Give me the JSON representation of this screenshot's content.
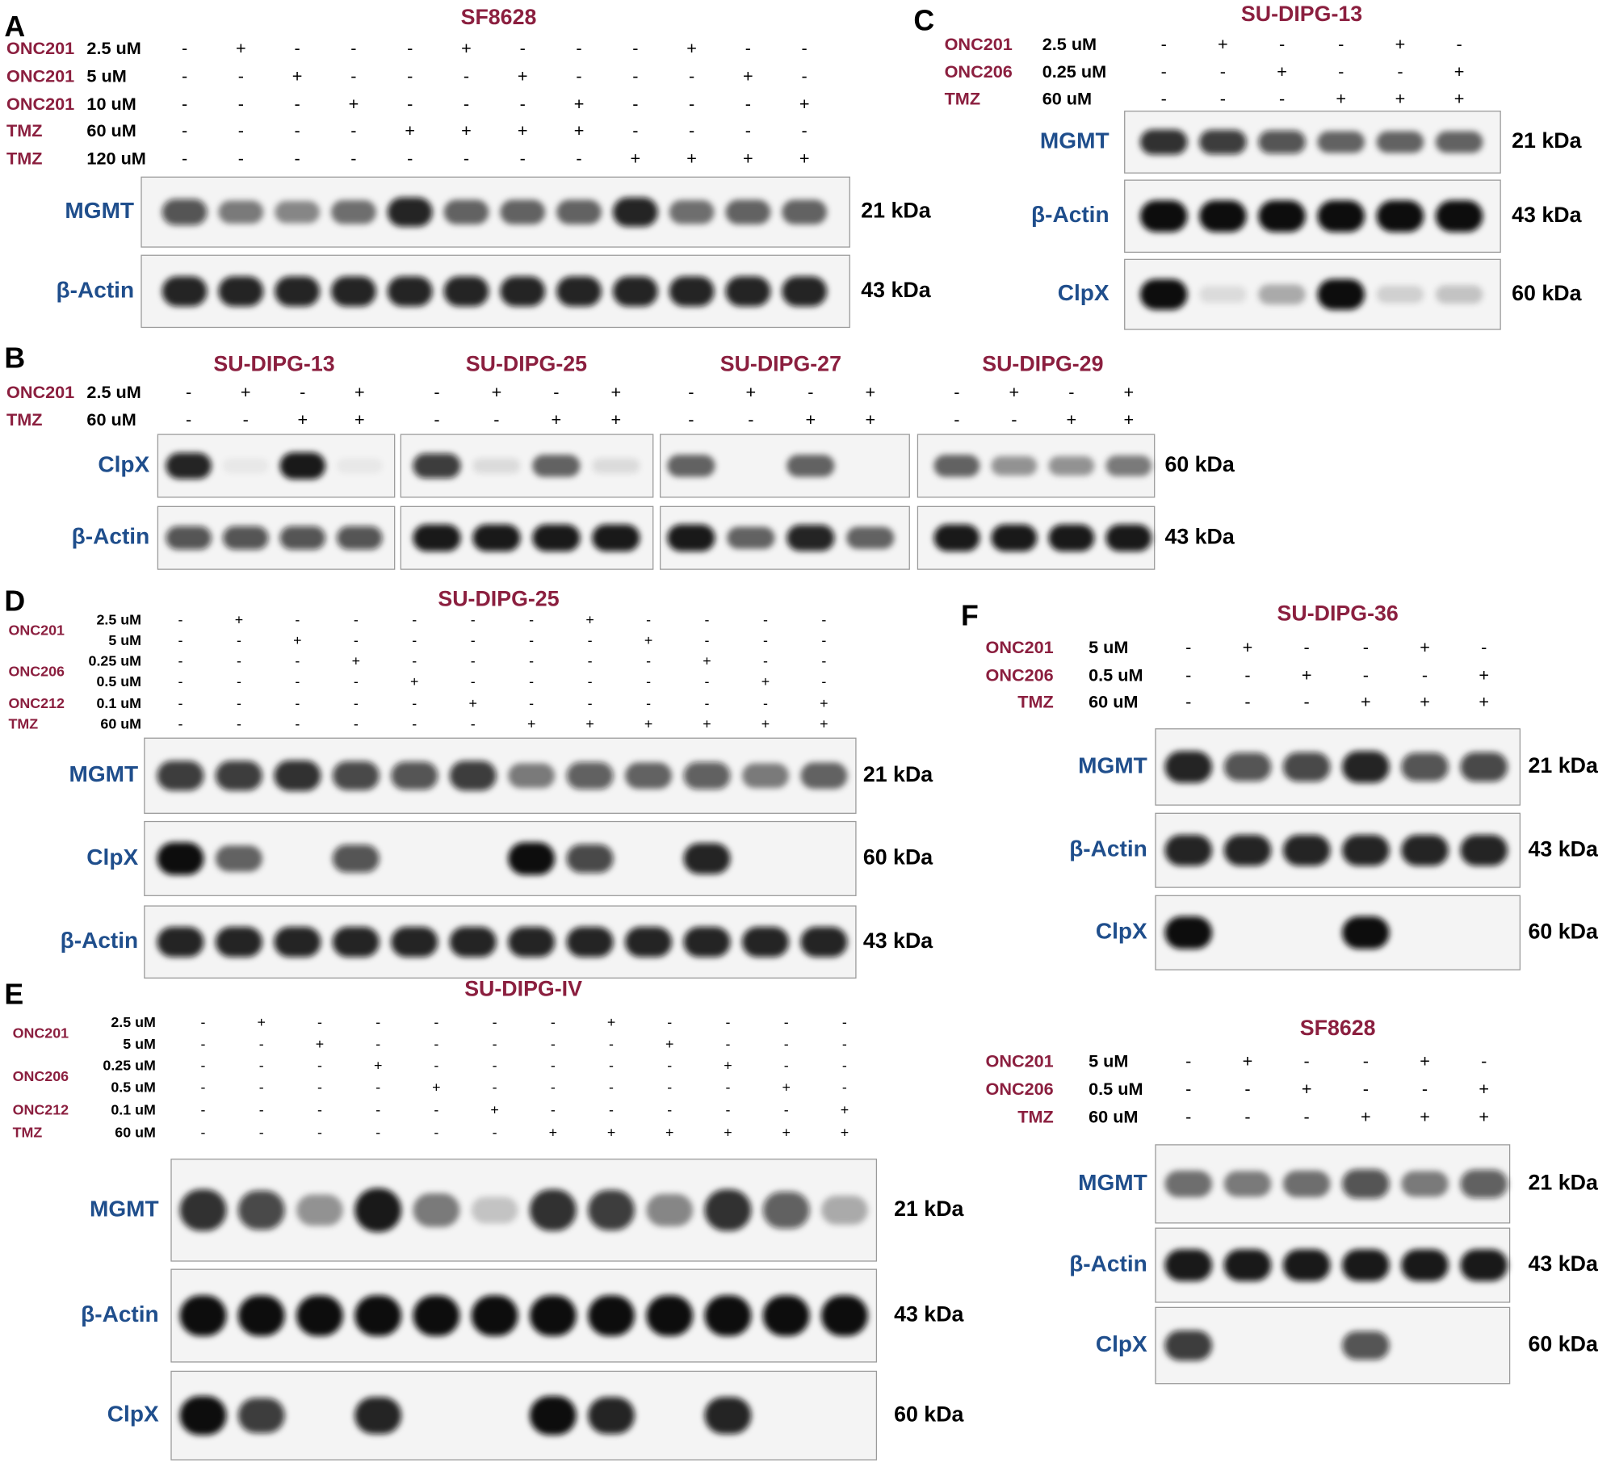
{
  "panels": [
    {
      "letter": "A",
      "groups": [
        {
          "title": "SF8628",
          "treatments": [
            {
              "agent": "ONC201",
              "doses": [
                {
                  "dose": "2.5 uM",
                  "signs": [
                    "-",
                    "+",
                    "-",
                    "-",
                    "-",
                    "+",
                    "-",
                    "-",
                    "-",
                    "+",
                    "-",
                    "-"
                  ]
                }
              ]
            },
            {
              "agent": "ONC201",
              "doses": [
                {
                  "dose": "5 uM",
                  "signs": [
                    "-",
                    "-",
                    "+",
                    "-",
                    "-",
                    "-",
                    "+",
                    "-",
                    "-",
                    "-",
                    "+",
                    "-"
                  ]
                }
              ]
            },
            {
              "agent": "ONC201",
              "doses": [
                {
                  "dose": "10 uM",
                  "signs": [
                    "-",
                    "-",
                    "-",
                    "+",
                    "-",
                    "-",
                    "-",
                    "+",
                    "-",
                    "-",
                    "-",
                    "+"
                  ]
                }
              ]
            },
            {
              "agent": "TMZ",
              "doses": [
                {
                  "dose": "60 uM",
                  "signs": [
                    "-",
                    "-",
                    "-",
                    "-",
                    "+",
                    "+",
                    "+",
                    "+",
                    "-",
                    "-",
                    "-",
                    "-"
                  ]
                }
              ]
            },
            {
              "agent": "TMZ",
              "doses": [
                {
                  "dose": "120 uM",
                  "signs": [
                    "-",
                    "-",
                    "-",
                    "-",
                    "-",
                    "-",
                    "-",
                    "-",
                    "+",
                    "+",
                    "+",
                    "+"
                  ]
                }
              ]
            }
          ],
          "blots": [
            {
              "protein": "MGMT",
              "size": "21 kDa"
            },
            {
              "protein": "β-Actin",
              "size": "43 kDa"
            }
          ]
        }
      ]
    },
    {
      "letter": "B",
      "treatments": [
        {
          "agent": "ONC201",
          "doses": [
            {
              "dose": "2.5 uM"
            }
          ]
        },
        {
          "agent": "TMZ",
          "doses": [
            {
              "dose": "60 uM"
            }
          ]
        }
      ],
      "blots": [
        {
          "protein": "ClpX",
          "size": "60 kDa"
        },
        {
          "protein": "β-Actin",
          "size": "43 kDa"
        }
      ],
      "groups": [
        {
          "title": "SU-DIPG-13",
          "signs": [
            [
              "-",
              "+",
              "-",
              "+"
            ],
            [
              "-",
              "-",
              "+",
              "+"
            ]
          ]
        },
        {
          "title": "SU-DIPG-25",
          "signs": [
            [
              "-",
              "+",
              "-",
              "+"
            ],
            [
              "-",
              "-",
              "+",
              "+"
            ]
          ]
        },
        {
          "title": "SU-DIPG-27",
          "signs": [
            [
              "-",
              "+",
              "-",
              "+"
            ],
            [
              "-",
              "-",
              "+",
              "+"
            ]
          ]
        },
        {
          "title": "SU-DIPG-29",
          "signs": [
            [
              "-",
              "+",
              "-",
              "+"
            ],
            [
              "-",
              "-",
              "+",
              "+"
            ]
          ]
        }
      ]
    },
    {
      "letter": "C",
      "groups": [
        {
          "title": "SU-DIPG-13",
          "treatments": [
            {
              "agent": "ONC201",
              "doses": [
                {
                  "dose": "2.5 uM",
                  "signs": [
                    "-",
                    "+",
                    "-",
                    "-",
                    "+",
                    "-"
                  ]
                }
              ]
            },
            {
              "agent": "ONC206",
              "doses": [
                {
                  "dose": "0.25 uM",
                  "signs": [
                    "-",
                    "-",
                    "+",
                    "-",
                    "-",
                    "+"
                  ]
                }
              ]
            },
            {
              "agent": "TMZ",
              "doses": [
                {
                  "dose": "60 uM",
                  "signs": [
                    "-",
                    "-",
                    "-",
                    "+",
                    "+",
                    "+"
                  ]
                }
              ]
            }
          ],
          "blots": [
            {
              "protein": "MGMT",
              "size": "21 kDa"
            },
            {
              "protein": "β-Actin",
              "size": "43 kDa"
            },
            {
              "protein": "ClpX",
              "size": "60 kDa"
            }
          ]
        }
      ]
    },
    {
      "letter": "D",
      "groups": [
        {
          "title": "SU-DIPG-25",
          "treatments": [
            {
              "agent": "ONC201",
              "doses": [
                {
                  "dose": "2.5 uM",
                  "signs": [
                    "-",
                    "+",
                    "-",
                    "-",
                    "-",
                    "-",
                    "-",
                    "+",
                    "-",
                    "-",
                    "-",
                    "-"
                  ]
                },
                {
                  "dose": "5 uM",
                  "signs": [
                    "-",
                    "-",
                    "+",
                    "-",
                    "-",
                    "-",
                    "-",
                    "-",
                    "+",
                    "-",
                    "-",
                    "-"
                  ]
                }
              ]
            },
            {
              "agent": "ONC206",
              "doses": [
                {
                  "dose": "0.25 uM",
                  "signs": [
                    "-",
                    "-",
                    "-",
                    "+",
                    "-",
                    "-",
                    "-",
                    "-",
                    "-",
                    "+",
                    "-",
                    "-"
                  ]
                },
                {
                  "dose": "0.5 uM",
                  "signs": [
                    "-",
                    "-",
                    "-",
                    "-",
                    "+",
                    "-",
                    "-",
                    "-",
                    "-",
                    "-",
                    "+",
                    "-"
                  ]
                }
              ]
            },
            {
              "agent": "ONC212",
              "doses": [
                {
                  "dose": "0.1 uM",
                  "signs": [
                    "-",
                    "-",
                    "-",
                    "-",
                    "-",
                    "+",
                    "-",
                    "-",
                    "-",
                    "-",
                    "-",
                    "+"
                  ]
                }
              ]
            },
            {
              "agent": "TMZ",
              "doses": [
                {
                  "dose": "60 uM",
                  "signs": [
                    "-",
                    "-",
                    "-",
                    "-",
                    "-",
                    "-",
                    "+",
                    "+",
                    "+",
                    "+",
                    "+",
                    "+"
                  ]
                }
              ]
            }
          ],
          "blots": [
            {
              "protein": "MGMT",
              "size": "21 kDa"
            },
            {
              "protein": "ClpX",
              "size": "60 kDa"
            },
            {
              "protein": "β-Actin",
              "size": "43 kDa"
            }
          ]
        }
      ]
    },
    {
      "letter": "E",
      "groups": [
        {
          "title": "SU-DIPG-IV",
          "treatments": [
            {
              "agent": "ONC201",
              "doses": [
                {
                  "dose": "2.5 uM",
                  "signs": [
                    "-",
                    "+",
                    "-",
                    "-",
                    "-",
                    "-",
                    "-",
                    "+",
                    "-",
                    "-",
                    "-",
                    "-"
                  ]
                },
                {
                  "dose": "5 uM",
                  "signs": [
                    "-",
                    "-",
                    "+",
                    "-",
                    "-",
                    "-",
                    "-",
                    "-",
                    "+",
                    "-",
                    "-",
                    "-"
                  ]
                }
              ]
            },
            {
              "agent": "ONC206",
              "doses": [
                {
                  "dose": "0.25 uM",
                  "signs": [
                    "-",
                    "-",
                    "-",
                    "+",
                    "-",
                    "-",
                    "-",
                    "-",
                    "-",
                    "+",
                    "-",
                    "-"
                  ]
                },
                {
                  "dose": "0.5 uM",
                  "signs": [
                    "-",
                    "-",
                    "-",
                    "-",
                    "+",
                    "-",
                    "-",
                    "-",
                    "-",
                    "-",
                    "+",
                    "-"
                  ]
                }
              ]
            },
            {
              "agent": "ONC212",
              "doses": [
                {
                  "dose": "0.1 uM",
                  "signs": [
                    "-",
                    "-",
                    "-",
                    "-",
                    "-",
                    "+",
                    "-",
                    "-",
                    "-",
                    "-",
                    "-",
                    "+"
                  ]
                }
              ]
            },
            {
              "agent": "TMZ",
              "doses": [
                {
                  "dose": "60 uM",
                  "signs": [
                    "-",
                    "-",
                    "-",
                    "-",
                    "-",
                    "-",
                    "+",
                    "+",
                    "+",
                    "+",
                    "+",
                    "+"
                  ]
                }
              ]
            }
          ],
          "blots": [
            {
              "protein": "MGMT",
              "size": "21 kDa"
            },
            {
              "protein": "β-Actin",
              "size": "43 kDa"
            },
            {
              "protein": "ClpX",
              "size": "60 kDa"
            }
          ]
        }
      ]
    },
    {
      "letter": "F",
      "groups": [
        {
          "title": "SU-DIPG-36",
          "treatments": [
            {
              "agent": "ONC201",
              "doses": [
                {
                  "dose": "5 uM",
                  "signs": [
                    "-",
                    "+",
                    "-",
                    "-",
                    "+",
                    "-"
                  ]
                }
              ]
            },
            {
              "agent": "ONC206",
              "doses": [
                {
                  "dose": "0.5 uM",
                  "signs": [
                    "-",
                    "-",
                    "+",
                    "-",
                    "-",
                    "+"
                  ]
                }
              ]
            },
            {
              "agent": "TMZ",
              "doses": [
                {
                  "dose": "60 uM",
                  "signs": [
                    "-",
                    "-",
                    "-",
                    "+",
                    "+",
                    "+"
                  ]
                }
              ]
            }
          ],
          "blots": [
            {
              "protein": "MGMT",
              "size": "21 kDa"
            },
            {
              "protein": "β-Actin",
              "size": "43 kDa"
            },
            {
              "protein": "ClpX",
              "size": "60 kDa"
            }
          ]
        },
        {
          "title": "SF8628",
          "treatments": [
            {
              "agent": "ONC201",
              "doses": [
                {
                  "dose": "5 uM",
                  "signs": [
                    "-",
                    "+",
                    "-",
                    "-",
                    "+",
                    "-"
                  ]
                }
              ]
            },
            {
              "agent": "ONC206",
              "doses": [
                {
                  "dose": "0.5 uM",
                  "signs": [
                    "-",
                    "-",
                    "+",
                    "-",
                    "-",
                    "+"
                  ]
                }
              ]
            },
            {
              "agent": "TMZ",
              "doses": [
                {
                  "dose": "60 uM",
                  "signs": [
                    "-",
                    "-",
                    "-",
                    "+",
                    "+",
                    "+"
                  ]
                }
              ]
            }
          ],
          "blots": [
            {
              "protein": "MGMT",
              "size": "21 kDa"
            },
            {
              "protein": "β-Actin",
              "size": "43 kDa"
            },
            {
              "protein": "ClpX",
              "size": "60 kDa"
            }
          ]
        }
      ]
    }
  ]
}
